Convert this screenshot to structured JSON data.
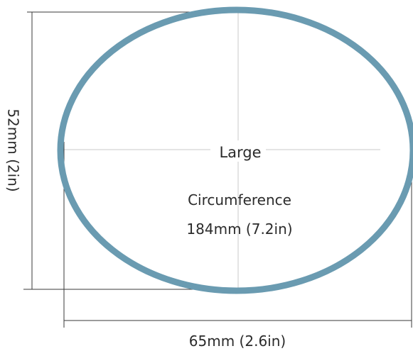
{
  "size_name": "Large",
  "circumference_label": "Circumference",
  "circumference_value": "184mm (7.2in)",
  "height_dimension": "52mm (2in)",
  "width_dimension": "65mm (2.6in)",
  "ring_color": "#6a9bb1"
}
